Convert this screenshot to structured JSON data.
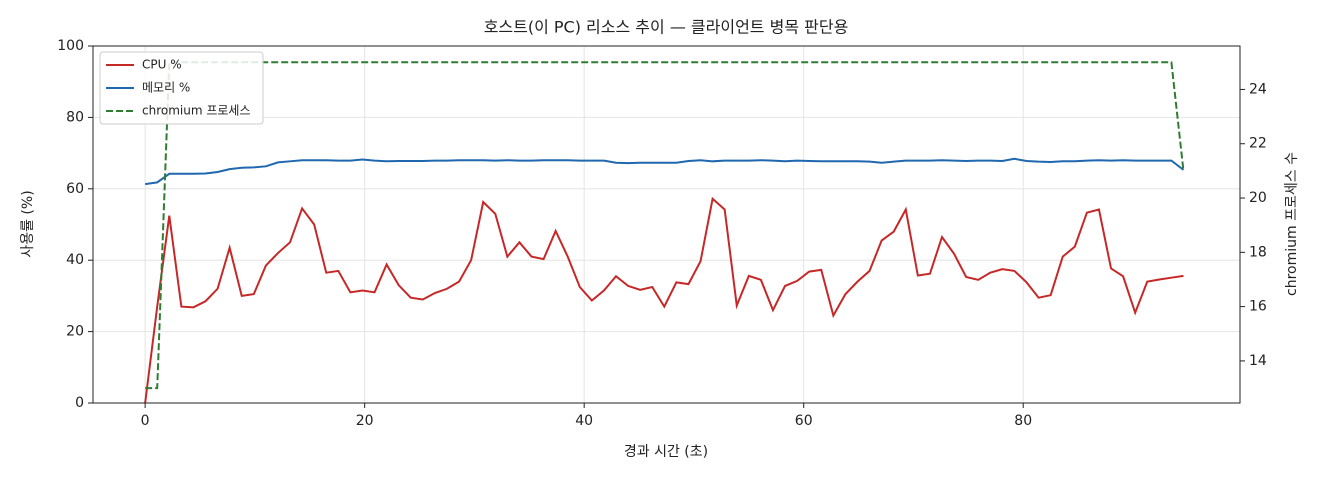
{
  "chart_data": {
    "type": "line",
    "title": "호스트(이 PC) 리소스 추이 — 클라이언트 병목 판단용",
    "x_label": "경과 시간 (초)",
    "y_label": "사용률 (%)",
    "y2_label": "chromium 프로세스 수",
    "x": [
      0,
      1.1,
      2.2,
      3.3,
      4.4,
      5.5,
      6.6,
      7.7,
      8.8,
      9.9,
      11,
      12.1,
      13.2,
      14.3,
      15.4,
      16.5,
      17.6,
      18.7,
      19.8,
      20.9,
      22,
      23.1,
      24.2,
      25.3,
      26.4,
      27.5,
      28.6,
      29.7,
      30.8,
      31.9,
      33,
      34.1,
      35.2,
      36.3,
      37.4,
      38.5,
      39.6,
      40.7,
      41.8,
      42.9,
      44,
      45.1,
      46.2,
      47.3,
      48.4,
      49.5,
      50.6,
      51.7,
      52.8,
      53.9,
      55,
      56.1,
      57.2,
      58.3,
      59.4,
      60.5,
      61.6,
      62.7,
      63.8,
      64.9,
      66,
      67.1,
      68.2,
      69.3,
      70.4,
      71.5,
      72.6,
      73.7,
      74.8,
      75.9,
      77,
      78.1,
      79.2,
      80.3,
      81.4,
      82.5,
      83.6,
      84.7,
      85.8,
      86.9,
      88,
      89.1,
      90.2,
      91.3,
      92.4,
      93.5,
      94.6
    ],
    "series": [
      {
        "name": "CPU %",
        "color": "#c62828",
        "linestyle": "solid",
        "values": [
          0,
          27,
          52.5,
          27,
          26.8,
          28.5,
          32,
          43.5,
          30,
          30.5,
          38.5,
          42,
          45,
          54.5,
          50,
          36.5,
          37,
          31,
          31.5,
          31,
          38.8,
          33,
          29.5,
          29,
          30.8,
          32,
          34,
          40,
          56.3,
          53,
          41,
          45,
          41,
          40.3,
          48.2,
          41,
          32.5,
          28.7,
          31.5,
          35.5,
          32.8,
          31.7,
          32.5,
          27,
          33.8,
          33.3,
          39.7,
          57.2,
          54.2,
          27.3,
          35.6,
          34.5,
          26,
          32.8,
          34.2,
          36.8,
          37.3,
          24.5,
          30.5,
          34,
          37,
          45.5,
          48,
          54.2,
          35.7,
          36.2,
          46.5,
          41.8,
          35.3,
          34.5,
          36.5,
          37.5,
          37,
          33.8,
          29.5,
          30.2,
          41,
          43.8,
          53.3,
          54.2,
          37.7,
          35.5,
          25.3,
          34,
          34.6,
          35.1,
          35.6
        ]
      },
      {
        "name": "메모리 %",
        "color": "#1f68b0",
        "linestyle": "solid",
        "values": [
          61.3,
          61.8,
          64.2,
          64.2,
          64.2,
          64.3,
          64.7,
          65.5,
          65.9,
          66.0,
          66.3,
          67.4,
          67.7,
          68.0,
          68.0,
          68.0,
          67.9,
          67.9,
          68.2,
          67.9,
          67.7,
          67.8,
          67.8,
          67.8,
          67.9,
          67.9,
          68.0,
          68.0,
          68.0,
          67.9,
          68.0,
          67.9,
          67.9,
          68.0,
          68.0,
          68.0,
          67.9,
          67.9,
          67.9,
          67.3,
          67.2,
          67.3,
          67.3,
          67.3,
          67.3,
          67.8,
          68.0,
          67.7,
          67.9,
          67.9,
          67.9,
          68.0,
          67.9,
          67.7,
          67.9,
          67.8,
          67.7,
          67.7,
          67.7,
          67.7,
          67.6,
          67.3,
          67.6,
          67.9,
          67.9,
          67.9,
          68.0,
          67.9,
          67.8,
          67.9,
          67.9,
          67.8,
          68.4,
          67.8,
          67.6,
          67.5,
          67.7,
          67.7,
          67.9,
          68.0,
          67.9,
          68.0,
          67.9,
          67.9,
          67.9,
          67.9,
          65.3
        ]
      },
      {
        "name": "chromium 프로세스",
        "color": "#2e7d32",
        "linestyle": "dashed",
        "axis": "y2",
        "values": [
          13,
          13,
          25,
          25,
          25,
          25,
          25,
          25,
          25,
          25,
          25,
          25,
          25,
          25,
          25,
          25,
          25,
          25,
          25,
          25,
          25,
          25,
          25,
          25,
          25,
          25,
          25,
          25,
          25,
          25,
          25,
          25,
          25,
          25,
          25,
          25,
          25,
          25,
          25,
          25,
          25,
          25,
          25,
          25,
          25,
          25,
          25,
          25,
          25,
          25,
          25,
          25,
          25,
          25,
          25,
          25,
          25,
          25,
          25,
          25,
          25,
          25,
          25,
          25,
          25,
          25,
          25,
          25,
          25,
          25,
          25,
          25,
          25,
          25,
          25,
          25,
          25,
          25,
          25,
          25,
          25,
          25,
          25,
          25,
          25,
          25,
          21
        ]
      }
    ],
    "xlim": [
      -4.75,
      99.75
    ],
    "xticks": [
      0,
      20,
      40,
      60,
      80
    ],
    "ylim": [
      0,
      100
    ],
    "yticks": [
      0,
      20,
      40,
      60,
      80,
      100
    ],
    "y2lim": [
      12.45,
      25.6
    ],
    "y2ticks": [
      14,
      16,
      18,
      20,
      22,
      24
    ],
    "grid": true,
    "legend": "upper left"
  }
}
